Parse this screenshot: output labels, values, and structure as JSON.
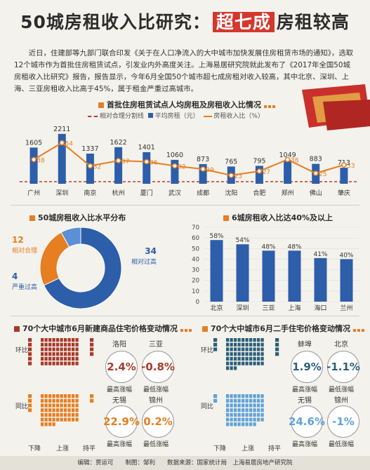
{
  "title": {
    "pre": "50城房租收入比研究：",
    "highlight": "超七成",
    "post": "房租较高"
  },
  "intro": "近日，住建部等九部门联合印发《关于在人口净流入的大中城市加快发展住房租赁市场的通知》，选取12个城市作为首批住房租赁试点，引发业内外高度关注。上海易居研究院就此发布了《2017年全国50城房租收入比研究》报告，报告显示，今年6月全国50个城市超七成房租对收入较高，其中北京、深圳、上海、三亚房租收入比高于45%，属于租金严重过高城市。",
  "section1": {
    "title": "首批住房租赁试点人均房租及房租收入比情况",
    "legend": {
      "line": "相对合理分割线",
      "bar": "平均房租（元）",
      "ratio": "房租收入比（%）"
    }
  },
  "section2": {
    "title": "50城房租收入比水平分布"
  },
  "section3": {
    "title": "6城房租收入比达40%及以上"
  },
  "section4": {
    "title": "70个大中城市6月新建商品住宅价格变动情况"
  },
  "section5": {
    "title": "70个大中城市6月二手住宅价格变动情况"
  },
  "chart_data": [
    {
      "type": "bar",
      "categories": [
        "广州",
        "深圳",
        "南京",
        "杭州",
        "厦门",
        "武汉",
        "成都",
        "沈阳",
        "合肥",
        "郑州",
        "佛山",
        "肇庆"
      ],
      "series": [
        {
          "name": "平均房租（元）",
          "values": [
            1605,
            2211,
            1337,
            1622,
            1401,
            1060,
            873,
            765,
            795,
            1049,
            883,
            713
          ]
        },
        {
          "name": "房租收入比（%）",
          "type": "line",
          "values": [
            38,
            54,
            32,
            37,
            36,
            32,
            29,
            23,
            27,
            38,
            25,
            33
          ]
        }
      ],
      "reference_line": "相对合理分割线",
      "colors": {
        "bar": "#2d5ea9",
        "line": "#e67e22",
        "ref": "#c0392b"
      }
    },
    {
      "type": "pie",
      "slices": [
        {
          "label": "相对过高",
          "value": 34,
          "color": "#2d5ea9"
        },
        {
          "label": "相对合理",
          "value": 12,
          "color": "#e67e22"
        },
        {
          "label": "严重过高",
          "value": 4,
          "color": "#5b8fd6"
        }
      ]
    },
    {
      "type": "bar",
      "categories": [
        "北京",
        "深圳",
        "三亚",
        "上海",
        "海口",
        "兰州"
      ],
      "values": [
        58,
        54,
        48,
        48,
        41,
        40
      ],
      "value_labels": [
        "58%",
        "54%",
        "48%",
        "48%",
        "41%",
        "40%"
      ],
      "y_ticks": [
        0,
        10,
        20,
        30,
        40,
        50,
        60,
        70
      ],
      "ylim": [
        0,
        70
      ],
      "color": "#2d5ea9"
    }
  ],
  "panel_left": {
    "rows": [
      "环比",
      "同比"
    ],
    "cols": [
      "下降",
      "上涨",
      "持平"
    ],
    "mom": {
      "down": 6,
      "up": 60,
      "flat": 4
    },
    "yoy": {
      "down": 4,
      "up": 64,
      "flat": 2
    },
    "top_cities": [
      "洛阳",
      "三亚"
    ],
    "top_vals": [
      "2.4%",
      "-0.8%"
    ],
    "bottom_cities": [
      "无锡",
      "锦州"
    ],
    "bottom_vals": [
      "22.9%",
      "0.2%"
    ],
    "cap_max": "最高涨幅",
    "cap_min": "最低涨幅",
    "color": "#a83a2a",
    "color_yoy": "#e67e22"
  },
  "panel_right": {
    "rows": [
      "环比",
      "同比"
    ],
    "cols": [
      "下降",
      "上涨",
      "持平"
    ],
    "mom": {
      "down": 3,
      "up": 63,
      "flat": 4
    },
    "yoy": {
      "down": 2,
      "up": 68,
      "flat": 0
    },
    "top_cities": [
      "蚌埠",
      "北京"
    ],
    "top_vals": [
      "1.9%",
      "-1.1%"
    ],
    "bottom_cities": [
      "无锡",
      "锦州"
    ],
    "bottom_vals": [
      "24.6%",
      "-1%"
    ],
    "cap_max": "最高涨幅",
    "cap_min": "最低涨幅",
    "color": "#2b5f78",
    "color_yoy": "#5fa2d8"
  },
  "footer": "编辑：贾运可　　制图：邹利　　数据来源：国家统计局　上海易居房地产研究院"
}
